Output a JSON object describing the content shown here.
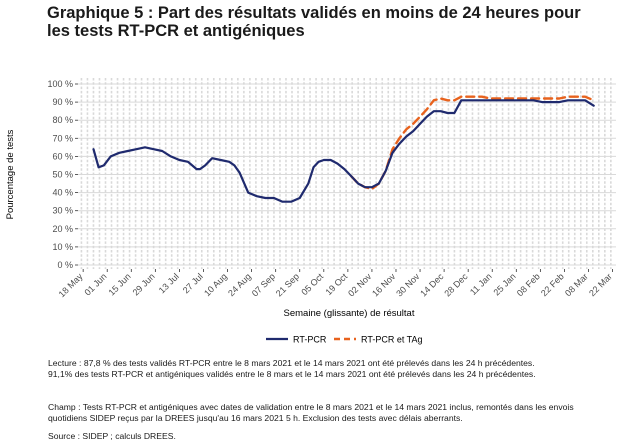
{
  "title_lines": [
    "Graphique 5 : Part des résultats validés en moins de 24 heures pour",
    "les tests RT-PCR et antigéniques"
  ],
  "notes": {
    "lecture": [
      "Lecture : 87,8 % des tests validés RT-PCR entre le 8 mars 2021 et le 14 mars 2021 ont été prélevés dans les 24 h précédentes.",
      "91,1% des tests RT-PCR et antigéniques validés entre le 8 mars et le 14 mars 2021 ont été prélevés dans les 24 h précédentes."
    ],
    "champ": [
      "Champ : Tests RT-PCR et antigéniques avec dates de validation entre le 8 mars 2021 et le 14 mars 2021 inclus, remontés dans les envois",
      "quotidiens SIDEP reçus par la DREES jusqu'au 16 mars 2021 5 h. Exclusion des tests avec délais aberrants."
    ],
    "source": "Source : SIDEP ; calculs DREES."
  },
  "chart_data": {
    "type": "line",
    "xlabel": "Semaine (glissante) de résultat",
    "ylabel": "Pourcentage de tests",
    "x_ticks": [
      "18 May",
      "01 Jun",
      "15 Jun",
      "29 Jun",
      "13 Jul",
      "27 Jul",
      "10 Aug",
      "24 Aug",
      "07 Sep",
      "21 Sep",
      "05 Oct",
      "19 Oct",
      "02 Nov",
      "16 Nov",
      "30 Nov",
      "14 Dec",
      "28 Dec",
      "11 Jan",
      "25 Jan",
      "08 Feb",
      "22 Feb",
      "08 Mar",
      "22 Mar"
    ],
    "y_ticks": [
      "0 %",
      "10 %",
      "20 %",
      "30 %",
      "40 %",
      "50 %",
      "60 %",
      "70 %",
      "80 %",
      "90 %",
      "100 %"
    ],
    "ylim": [
      0,
      100
    ],
    "grid": true,
    "legend_position": "bottom",
    "colors": {
      "rtpcr": "#1f2a6e",
      "tag": "#e8621d",
      "grid": "#d9d9d9"
    },
    "series": [
      {
        "name": "RT-PCR",
        "style": "solid",
        "x": [
          "2020-05-24",
          "2020-05-27",
          "2020-05-30",
          "2020-06-03",
          "2020-06-08",
          "2020-06-13",
          "2020-06-18",
          "2020-06-23",
          "2020-06-28",
          "2020-07-03",
          "2020-07-08",
          "2020-07-13",
          "2020-07-18",
          "2020-07-23",
          "2020-07-25",
          "2020-07-28",
          "2020-08-01",
          "2020-08-06",
          "2020-08-11",
          "2020-08-14",
          "2020-08-17",
          "2020-08-22",
          "2020-08-27",
          "2020-09-01",
          "2020-09-06",
          "2020-09-11",
          "2020-09-16",
          "2020-09-21",
          "2020-09-26",
          "2020-09-29",
          "2020-10-02",
          "2020-10-05",
          "2020-10-09",
          "2020-10-13",
          "2020-10-17",
          "2020-10-21",
          "2020-10-25",
          "2020-10-29",
          "2020-11-02",
          "2020-11-06",
          "2020-11-10",
          "2020-11-14",
          "2020-11-18",
          "2020-11-22",
          "2020-11-26",
          "2020-11-30",
          "2020-12-04",
          "2020-12-08",
          "2020-12-12",
          "2020-12-16",
          "2020-12-20",
          "2020-12-24",
          "2020-12-28",
          "2021-01-01",
          "2021-01-05",
          "2021-01-10",
          "2021-01-15",
          "2021-01-20",
          "2021-01-25",
          "2021-01-30",
          "2021-02-04",
          "2021-02-09",
          "2021-02-14",
          "2021-02-19",
          "2021-02-24",
          "2021-03-01",
          "2021-03-06",
          "2021-03-11"
        ],
        "y": [
          64,
          54,
          55,
          60,
          62,
          63,
          64,
          65,
          64,
          63,
          60,
          58,
          57,
          53,
          53,
          55,
          59,
          58,
          57,
          55,
          51,
          40,
          38,
          37,
          37,
          35,
          35,
          37,
          45,
          54,
          57,
          58,
          58,
          56,
          53,
          49,
          45,
          43,
          43,
          45,
          52,
          62,
          67,
          71,
          74,
          78,
          82,
          85,
          85,
          84,
          84,
          91,
          91,
          91,
          91,
          91,
          91,
          91,
          91,
          91,
          91,
          90,
          90,
          90,
          91,
          91,
          91,
          88
        ]
      },
      {
        "name": "RT-PCR et TAg",
        "style": "dashed",
        "x": [
          "2020-10-21",
          "2020-10-25",
          "2020-10-29",
          "2020-11-02",
          "2020-11-06",
          "2020-11-10",
          "2020-11-14",
          "2020-11-18",
          "2020-11-22",
          "2020-11-26",
          "2020-11-30",
          "2020-12-04",
          "2020-12-08",
          "2020-12-12",
          "2020-12-16",
          "2020-12-20",
          "2020-12-24",
          "2020-12-28",
          "2021-01-01",
          "2021-01-05",
          "2021-01-10",
          "2021-01-15",
          "2021-01-20",
          "2021-01-25",
          "2021-01-30",
          "2021-02-04",
          "2021-02-09",
          "2021-02-14",
          "2021-02-19",
          "2021-02-24",
          "2021-03-01",
          "2021-03-06",
          "2021-03-11"
        ],
        "y": [
          49,
          45,
          43,
          42,
          45,
          52,
          64,
          70,
          75,
          78,
          82,
          86,
          91,
          92,
          91,
          91,
          93,
          93,
          93,
          93,
          92,
          92,
          92,
          92,
          92,
          92,
          92,
          92,
          92,
          93,
          93,
          93,
          91
        ]
      }
    ]
  }
}
